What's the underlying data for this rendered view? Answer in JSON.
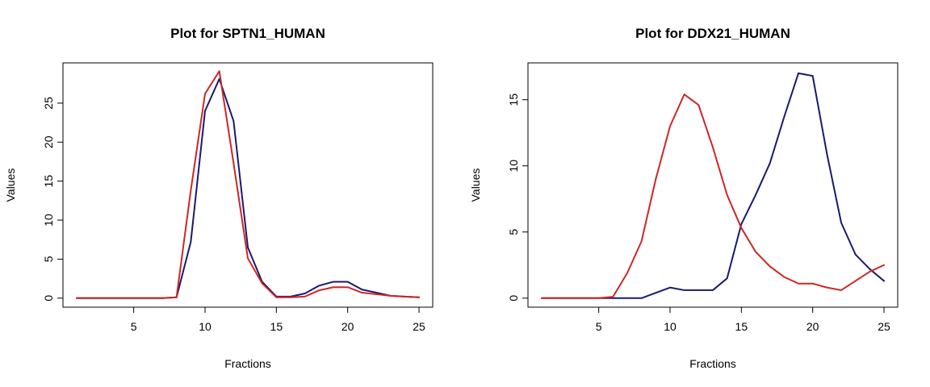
{
  "chart_data": [
    {
      "type": "line",
      "title": "Plot for SPTN1_HUMAN",
      "xlabel": "Fractions",
      "ylabel": "Values",
      "xlim": [
        0.04,
        25.96
      ],
      "ylim": [
        0,
        29
      ],
      "xticks": [
        5,
        10,
        15,
        20,
        25
      ],
      "yticks": [
        0,
        5,
        10,
        15,
        20,
        25
      ],
      "x": [
        1,
        2,
        3,
        4,
        5,
        6,
        7,
        8,
        9,
        10,
        11,
        12,
        13,
        14,
        15,
        16,
        17,
        18,
        19,
        20,
        21,
        22,
        23,
        24,
        25
      ],
      "series": [
        {
          "color": "#191970",
          "values": [
            0,
            0,
            0,
            0,
            0,
            0,
            0,
            0.1,
            7.2,
            24,
            28.1,
            22.7,
            6.5,
            2.1,
            0.2,
            0.2,
            0.6,
            1.6,
            2.1,
            2.1,
            1.1,
            0.7,
            0.3,
            0.2,
            0.1
          ]
        },
        {
          "color": "#CD2626",
          "values": [
            0,
            0,
            0,
            0,
            0,
            0,
            0,
            0.1,
            13.8,
            26.2,
            29.1,
            17.3,
            5.1,
            1.9,
            0.1,
            0.1,
            0.2,
            1,
            1.4,
            1.4,
            0.7,
            0.5,
            0.3,
            0.2,
            0.1
          ]
        }
      ]
    },
    {
      "type": "line",
      "title": "Plot for DDX21_HUMAN",
      "xlabel": "Fractions",
      "ylabel": "Values",
      "xlim": [
        0.04,
        25.96
      ],
      "ylim": [
        0,
        17.1
      ],
      "xticks": [
        5,
        10,
        15,
        20,
        25
      ],
      "yticks": [
        0,
        5,
        10,
        15
      ],
      "x": [
        1,
        2,
        3,
        4,
        5,
        6,
        7,
        8,
        9,
        10,
        11,
        12,
        13,
        14,
        15,
        16,
        17,
        18,
        19,
        20,
        21,
        22,
        23,
        24,
        25
      ],
      "series": [
        {
          "color": "#191970",
          "values": [
            0,
            0,
            0,
            0,
            0,
            0,
            0,
            0,
            0.4,
            0.8,
            0.6,
            0.6,
            0.6,
            1.5,
            5.6,
            7.8,
            10.2,
            13.7,
            17,
            16.8,
            10.9,
            5.7,
            3.3,
            2.2,
            1.3
          ]
        },
        {
          "color": "#CD2626",
          "values": [
            0,
            0,
            0,
            0,
            0,
            0.1,
            1.9,
            4.3,
            9,
            13,
            15.4,
            14.6,
            11.4,
            7.8,
            5.3,
            3.5,
            2.4,
            1.6,
            1.1,
            1.1,
            0.8,
            0.6,
            1.3,
            2,
            2.5
          ]
        }
      ]
    }
  ]
}
